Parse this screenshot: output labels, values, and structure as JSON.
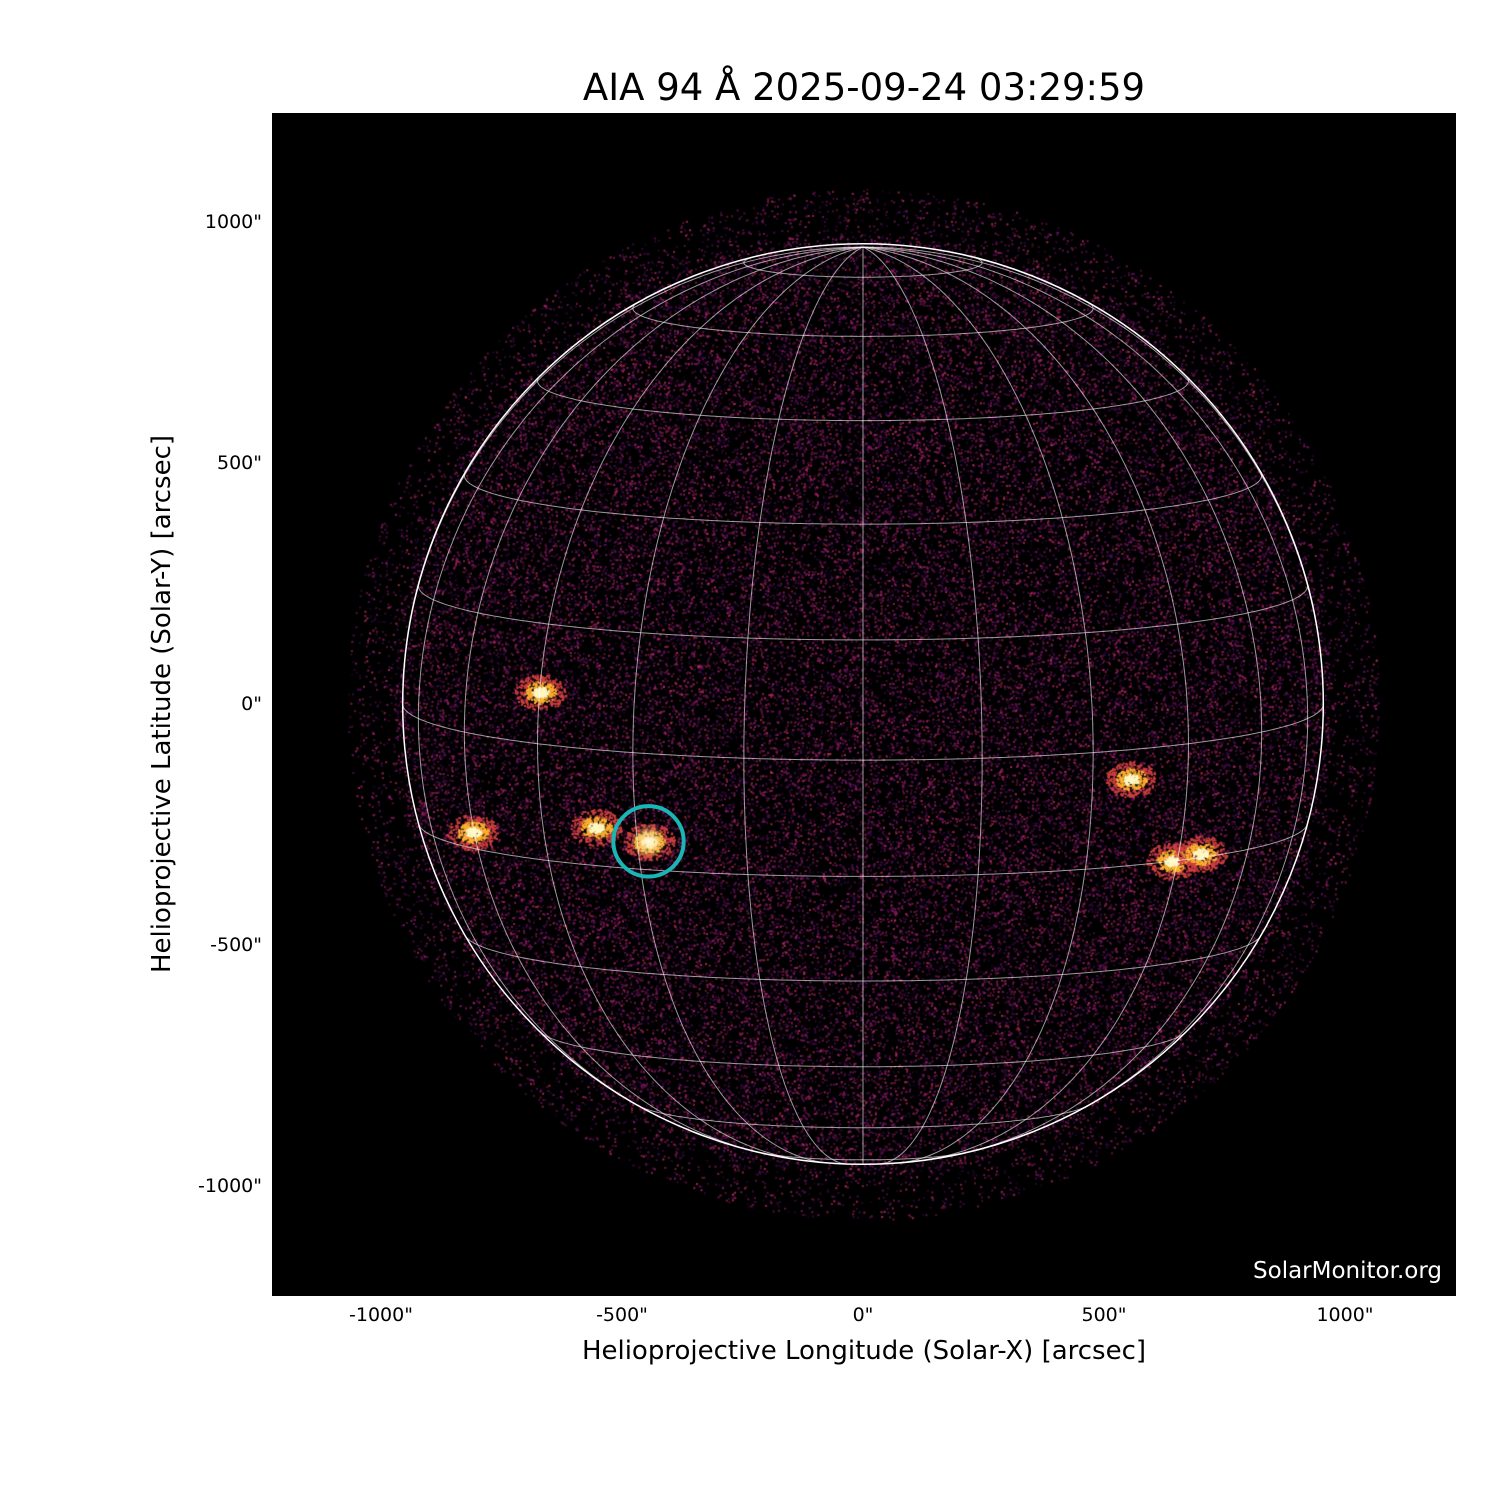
{
  "chart_data": {
    "type": "image",
    "title": "AIA 94 Å 2025-09-24 03:29:59",
    "xlabel": "Helioprojective Longitude (Solar-X) [arcsec]",
    "ylabel": "Helioprojective Latitude (Solar-Y) [arcsec]",
    "xlim": [
      -1230,
      1230
    ],
    "ylim": [
      -1230,
      1230
    ],
    "xticks": [
      "-1000\"",
      "-500\"",
      "0\"",
      "500\"",
      "1000\""
    ],
    "yticks": [
      "1000\"",
      "500\"",
      "0\"",
      "-500\"",
      "-1000\""
    ],
    "tick_values": [
      -1000,
      -500,
      0,
      500,
      1000
    ],
    "colormap": "sdoaia94",
    "solar_radius_arcsec": 955,
    "grid": {
      "spacing_deg": 15,
      "b0_deg": 7,
      "color": "#ffffff"
    },
    "highlight_circle": {
      "x": -445,
      "y": -285,
      "radius": 73,
      "color": "#1ab5b5"
    },
    "active_regions": [
      {
        "x": -445,
        "y": -285
      },
      {
        "x": -555,
        "y": -255
      },
      {
        "x": -810,
        "y": -265
      },
      {
        "x": -670,
        "y": 25
      },
      {
        "x": 640,
        "y": -325
      },
      {
        "x": 555,
        "y": -155
      },
      {
        "x": 700,
        "y": -310
      }
    ],
    "watermark": "SolarMonitor.org"
  }
}
